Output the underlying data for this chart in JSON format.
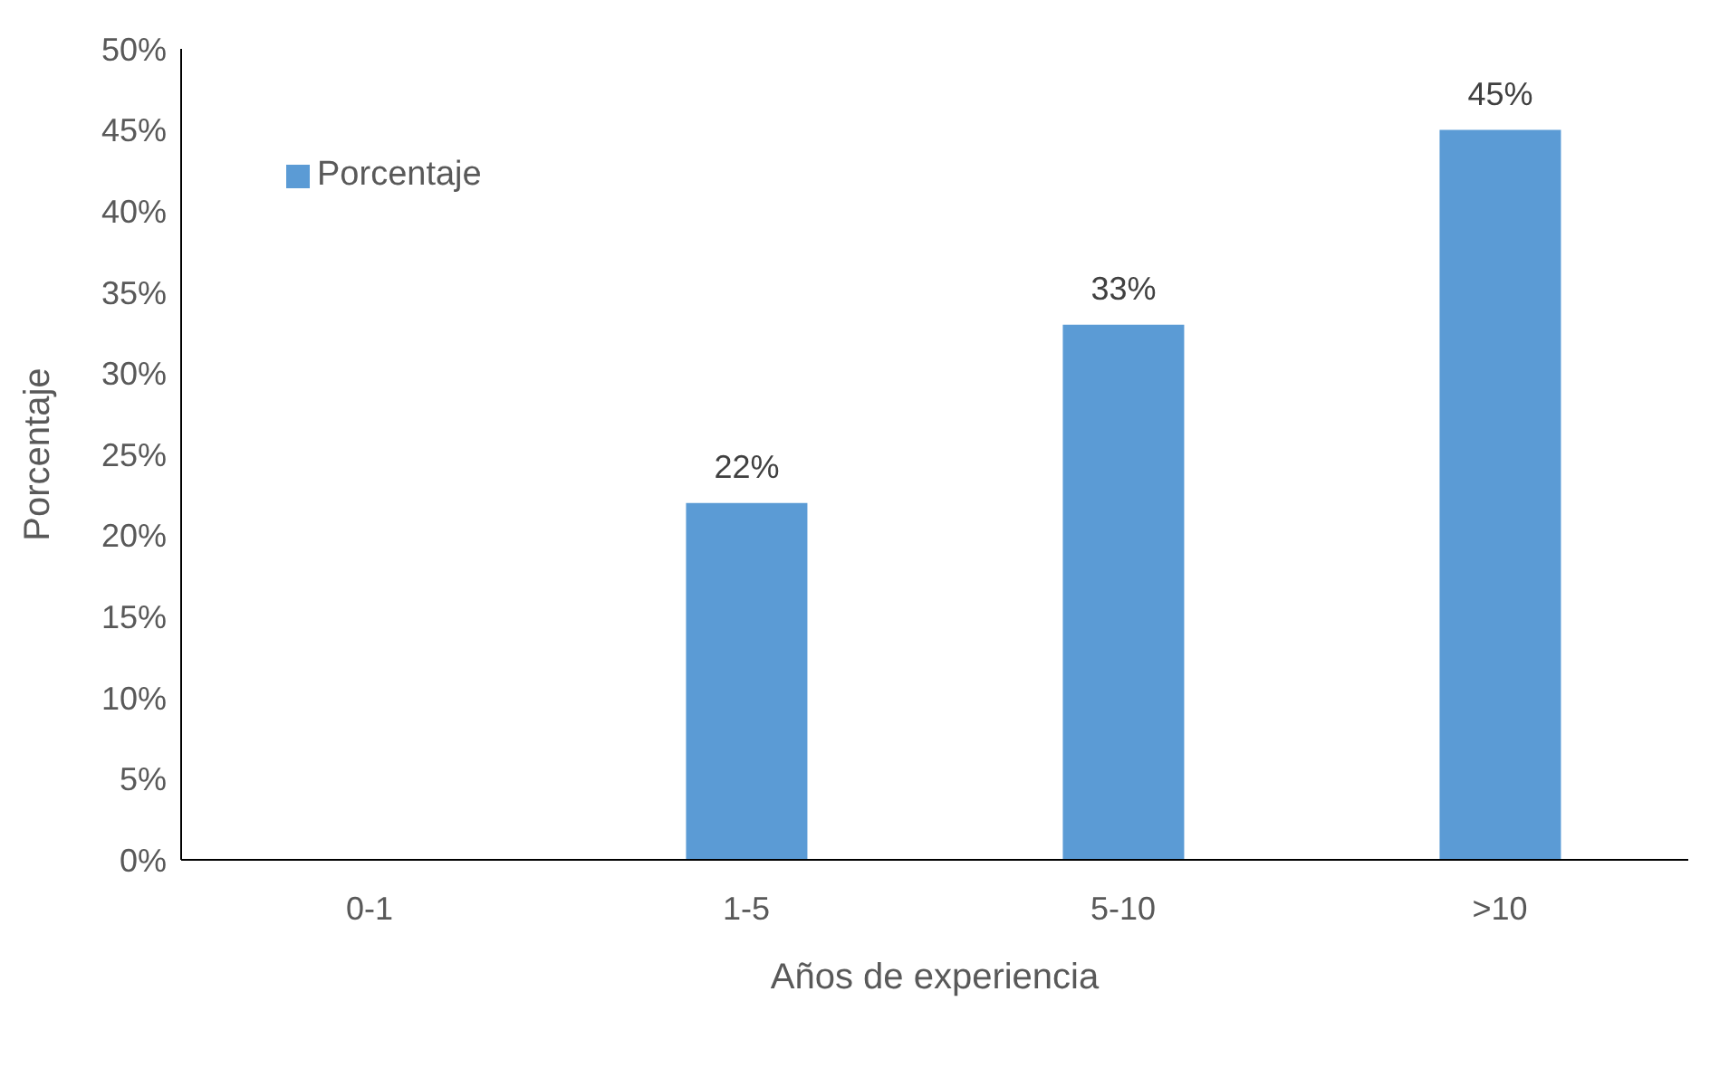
{
  "chart_data": {
    "type": "bar",
    "xlabel": "Años de experiencia",
    "ylabel": "Porcentaje",
    "categories": [
      "0-1",
      "1-5",
      "5-10",
      ">10"
    ],
    "series": [
      {
        "name": "Porcentaje",
        "color": "#5b9bd5",
        "values": [
          0,
          22,
          33,
          45
        ],
        "value_labels": [
          null,
          "22%",
          "33%",
          "45%"
        ]
      }
    ],
    "ylim": [
      0,
      50
    ],
    "yticks": [
      {
        "value": 0,
        "label": "0%"
      },
      {
        "value": 5,
        "label": "5%"
      },
      {
        "value": 10,
        "label": "10%"
      },
      {
        "value": 15,
        "label": "15%"
      },
      {
        "value": 20,
        "label": "20%"
      },
      {
        "value": 25,
        "label": "25%"
      },
      {
        "value": 30,
        "label": "30%"
      },
      {
        "value": 35,
        "label": "35%"
      },
      {
        "value": 40,
        "label": "40%"
      },
      {
        "value": 45,
        "label": "45%"
      },
      {
        "value": 50,
        "label": "50%"
      }
    ],
    "grid": false,
    "legend": "top left"
  }
}
